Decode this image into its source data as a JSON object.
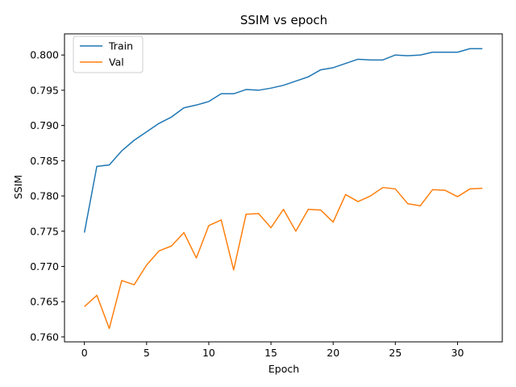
{
  "chart_data": {
    "type": "line",
    "title": "SSIM vs epoch",
    "xlabel": "Epoch",
    "ylabel": "SSIM",
    "xlim": [
      -1.6,
      33.6
    ],
    "ylim": [
      0.7593,
      0.803
    ],
    "xticks": [
      0,
      5,
      10,
      15,
      20,
      25,
      30
    ],
    "yticks": [
      0.76,
      0.765,
      0.77,
      0.775,
      0.78,
      0.785,
      0.79,
      0.795,
      0.8
    ],
    "grid": false,
    "legend_position": "top-left",
    "x": [
      0,
      1,
      2,
      3,
      4,
      5,
      6,
      7,
      8,
      9,
      10,
      11,
      12,
      13,
      14,
      15,
      16,
      17,
      18,
      19,
      20,
      21,
      22,
      23,
      24,
      25,
      26,
      27,
      28,
      29,
      30,
      31,
      32
    ],
    "series": [
      {
        "name": "Train",
        "color": "#1f77b4",
        "values": [
          0.7748,
          0.7842,
          0.7844,
          0.7864,
          0.7879,
          0.7891,
          0.7903,
          0.7912,
          0.7925,
          0.7929,
          0.7934,
          0.7945,
          0.7945,
          0.7951,
          0.795,
          0.7953,
          0.7957,
          0.7963,
          0.7969,
          0.7979,
          0.7982,
          0.7988,
          0.7994,
          0.7993,
          0.7993,
          0.8,
          0.7999,
          0.8,
          0.8004,
          0.8004,
          0.8004,
          0.8009,
          0.8009
        ]
      },
      {
        "name": "Val",
        "color": "#ff7f0e",
        "values": [
          0.7643,
          0.7659,
          0.7612,
          0.768,
          0.7674,
          0.7702,
          0.7722,
          0.7729,
          0.7748,
          0.7712,
          0.7758,
          0.7766,
          0.7695,
          0.7774,
          0.7775,
          0.7755,
          0.7781,
          0.775,
          0.7781,
          0.778,
          0.7763,
          0.7802,
          0.7792,
          0.78,
          0.7812,
          0.781,
          0.7789,
          0.7786,
          0.7809,
          0.7808,
          0.7799,
          0.781,
          0.7811
        ]
      }
    ]
  }
}
